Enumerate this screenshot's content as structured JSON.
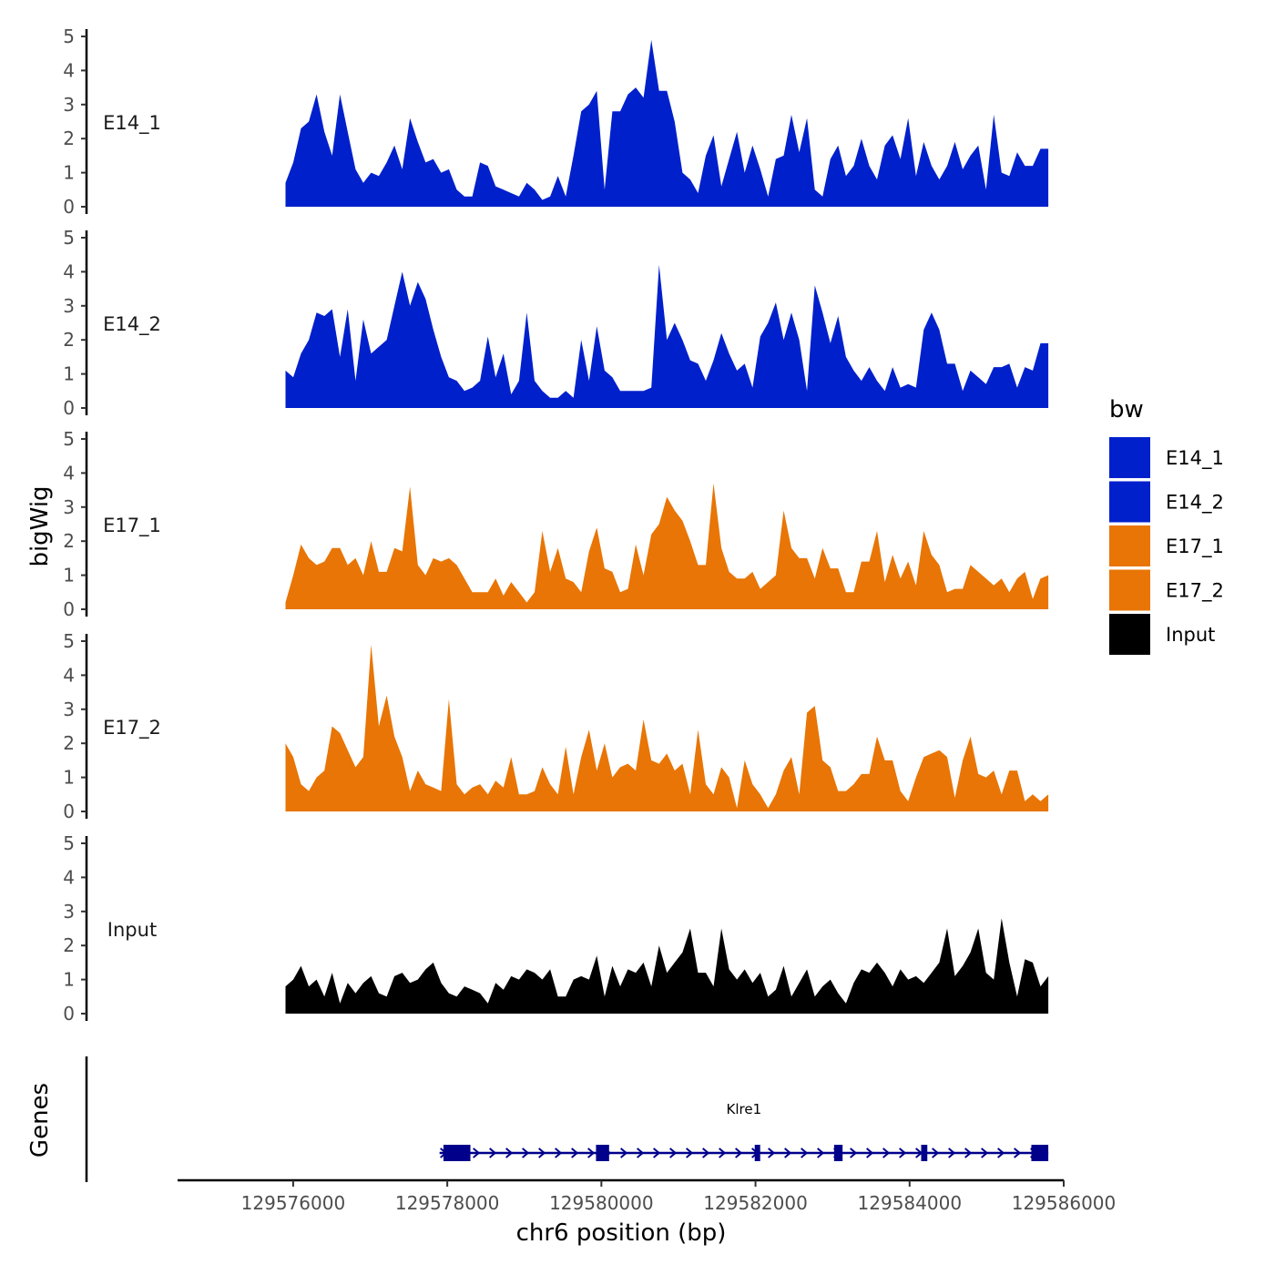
{
  "chart_data": {
    "type": "area",
    "title": "",
    "xlabel": "chr6 position (bp)",
    "ylabel": "bigWig",
    "gene_panel_label": "Genes",
    "xlim": [
      129574500,
      129586000
    ],
    "xticks": [
      129576000,
      129578000,
      129580000,
      129582000,
      129584000,
      129586000
    ],
    "xtick_labels": [
      "129576000",
      "129578000",
      "129580000",
      "129582000",
      "129584000",
      "129586000"
    ],
    "ylim": [
      0,
      5
    ],
    "yticks": [
      0,
      1,
      2,
      3,
      4,
      5
    ],
    "ytick_labels": [
      "0",
      "1",
      "2",
      "3",
      "4",
      "5"
    ],
    "track_range": [
      129575900,
      129585800
    ],
    "legend": {
      "title": "bw",
      "position": "right",
      "entries": [
        {
          "label": "E14_1",
          "color": "#0020CC"
        },
        {
          "label": "E14_2",
          "color": "#0020CC"
        },
        {
          "label": "E17_1",
          "color": "#E87505"
        },
        {
          "label": "E17_2",
          "color": "#E87505"
        },
        {
          "label": "Input",
          "color": "#000000"
        }
      ]
    },
    "series": [
      {
        "name": "E14_1",
        "color": "#0020CC",
        "values": [
          0.7,
          1.3,
          2.3,
          2.5,
          3.3,
          2.2,
          1.5,
          3.3,
          2.2,
          1.1,
          0.7,
          1.0,
          0.9,
          1.3,
          1.8,
          1.1,
          2.6,
          1.9,
          1.3,
          1.4,
          1.0,
          1.1,
          0.5,
          0.3,
          0.3,
          1.3,
          1.2,
          0.6,
          0.5,
          0.4,
          0.3,
          0.7,
          0.5,
          0.2,
          0.3,
          0.9,
          0.3,
          1.5,
          2.8,
          3.0,
          3.4,
          0.5,
          2.8,
          2.8,
          3.3,
          3.5,
          3.2,
          4.9,
          3.4,
          3.4,
          2.5,
          1.0,
          0.8,
          0.4,
          1.5,
          2.1,
          0.6,
          1.4,
          2.2,
          1.0,
          1.8,
          1.1,
          0.3,
          1.4,
          1.5,
          2.7,
          1.6,
          2.6,
          0.5,
          0.3,
          1.4,
          1.8,
          0.9,
          1.2,
          2.0,
          1.2,
          0.8,
          1.8,
          2.1,
          1.4,
          2.6,
          0.9,
          1.9,
          1.2,
          0.8,
          1.2,
          1.9,
          1.1,
          1.5,
          1.8,
          0.5,
          2.7,
          1.0,
          0.9,
          1.6,
          1.2,
          1.2,
          1.7,
          1.7
        ]
      },
      {
        "name": "E14_2",
        "color": "#0020CC",
        "values": [
          1.1,
          0.9,
          1.6,
          2.0,
          2.8,
          2.7,
          2.9,
          1.5,
          2.9,
          0.8,
          2.6,
          1.6,
          1.8,
          2.0,
          3.0,
          4.0,
          3.0,
          3.7,
          3.2,
          2.3,
          1.5,
          0.9,
          0.8,
          0.5,
          0.6,
          0.8,
          2.1,
          0.9,
          1.6,
          0.4,
          0.8,
          2.8,
          0.8,
          0.5,
          0.3,
          0.3,
          0.5,
          0.3,
          2.0,
          0.8,
          2.4,
          1.1,
          0.9,
          0.5,
          0.5,
          0.5,
          0.5,
          0.6,
          4.2,
          2.0,
          2.5,
          2.0,
          1.4,
          1.3,
          0.8,
          1.4,
          2.2,
          1.6,
          1.1,
          1.3,
          0.6,
          2.1,
          2.5,
          3.1,
          2.0,
          2.8,
          2.0,
          0.5,
          3.6,
          2.8,
          1.9,
          2.7,
          1.5,
          1.1,
          0.8,
          1.2,
          0.8,
          0.5,
          1.2,
          0.6,
          0.7,
          0.6,
          2.3,
          2.8,
          2.3,
          1.3,
          1.3,
          0.5,
          1.1,
          0.9,
          0.7,
          1.2,
          1.2,
          1.3,
          0.6,
          1.2,
          1.1,
          1.9,
          1.9
        ]
      },
      {
        "name": "E17_1",
        "color": "#E87505",
        "values": [
          0.2,
          1.0,
          1.9,
          1.5,
          1.3,
          1.4,
          1.8,
          1.8,
          1.3,
          1.5,
          1.0,
          2.0,
          1.1,
          1.1,
          1.8,
          1.7,
          3.6,
          1.3,
          1.0,
          1.5,
          1.4,
          1.5,
          1.3,
          0.9,
          0.5,
          0.5,
          0.5,
          0.9,
          0.4,
          0.8,
          0.5,
          0.2,
          0.5,
          2.3,
          1.1,
          1.8,
          0.9,
          0.8,
          0.5,
          1.7,
          2.4,
          1.2,
          1.1,
          0.5,
          0.6,
          1.9,
          1.0,
          2.2,
          2.5,
          3.3,
          2.9,
          2.6,
          2.0,
          1.3,
          1.3,
          3.7,
          1.8,
          1.1,
          0.9,
          0.9,
          1.1,
          0.6,
          0.8,
          1.0,
          2.9,
          1.8,
          1.5,
          1.5,
          0.9,
          1.8,
          1.2,
          1.2,
          0.5,
          0.5,
          1.4,
          1.4,
          2.3,
          0.8,
          1.6,
          0.9,
          1.4,
          0.7,
          2.3,
          1.6,
          1.3,
          0.5,
          0.6,
          0.6,
          1.3,
          1.1,
          0.9,
          0.7,
          0.9,
          0.5,
          0.9,
          1.1,
          0.3,
          0.9,
          1.0
        ]
      },
      {
        "name": "E17_2",
        "color": "#E87505",
        "values": [
          2.0,
          1.6,
          0.8,
          0.6,
          1.0,
          1.2,
          2.5,
          2.3,
          1.8,
          1.3,
          1.6,
          4.9,
          2.5,
          3.4,
          2.2,
          1.6,
          0.6,
          1.2,
          0.8,
          0.7,
          0.6,
          3.3,
          0.8,
          0.5,
          0.7,
          0.8,
          0.5,
          0.9,
          0.7,
          1.6,
          0.5,
          0.5,
          0.6,
          1.3,
          0.8,
          0.5,
          1.9,
          0.5,
          1.6,
          2.4,
          1.2,
          2.0,
          1.0,
          1.3,
          1.4,
          1.2,
          2.7,
          1.5,
          1.4,
          1.7,
          1.2,
          1.4,
          0.5,
          2.4,
          0.8,
          0.5,
          1.3,
          1.0,
          0.1,
          1.5,
          0.8,
          0.5,
          0.1,
          0.5,
          1.2,
          1.6,
          0.5,
          2.9,
          3.1,
          1.5,
          1.3,
          0.6,
          0.6,
          0.8,
          1.1,
          1.1,
          2.2,
          1.5,
          1.5,
          0.6,
          0.3,
          1.0,
          1.6,
          1.7,
          1.8,
          1.6,
          0.4,
          1.5,
          2.2,
          1.1,
          1.0,
          1.2,
          0.5,
          1.2,
          1.2,
          0.3,
          0.5,
          0.3,
          0.5
        ]
      },
      {
        "name": "Input",
        "color": "#000000",
        "values": [
          0.8,
          1.0,
          1.4,
          0.8,
          1.0,
          0.5,
          1.2,
          0.3,
          0.9,
          0.6,
          0.9,
          1.1,
          0.6,
          0.5,
          1.1,
          1.2,
          0.9,
          1.0,
          1.3,
          1.5,
          0.9,
          0.6,
          0.5,
          0.8,
          0.7,
          0.6,
          0.3,
          0.9,
          0.7,
          1.1,
          1.0,
          1.3,
          1.2,
          1.0,
          1.3,
          0.5,
          0.5,
          1.0,
          1.1,
          1.0,
          1.7,
          0.5,
          1.4,
          0.8,
          1.3,
          1.2,
          1.5,
          0.8,
          2.0,
          1.2,
          1.5,
          1.8,
          2.5,
          1.2,
          1.2,
          0.8,
          2.5,
          1.3,
          1.0,
          1.3,
          0.9,
          1.2,
          0.5,
          0.7,
          1.4,
          0.5,
          0.9,
          1.3,
          0.5,
          0.8,
          1.0,
          0.6,
          0.3,
          0.9,
          1.3,
          1.2,
          1.5,
          1.2,
          0.8,
          1.3,
          1.0,
          1.1,
          0.9,
          1.2,
          1.5,
          2.5,
          1.1,
          1.4,
          1.8,
          2.5,
          1.2,
          1.0,
          2.8,
          1.5,
          0.5,
          1.6,
          1.5,
          0.8,
          1.1
        ]
      }
    ],
    "gene": {
      "name": "Klre1",
      "color": "#00008B",
      "strand": "+",
      "start": 129577900,
      "end": 129585800,
      "exons": [
        {
          "start": 129577950,
          "end": 129578300
        },
        {
          "start": 129579930,
          "end": 129580100
        },
        {
          "start": 129581990,
          "end": 129582060
        },
        {
          "start": 129583020,
          "end": 129583130
        },
        {
          "start": 129584150,
          "end": 129584230
        },
        {
          "start": 129585580,
          "end": 129585800
        }
      ]
    }
  }
}
